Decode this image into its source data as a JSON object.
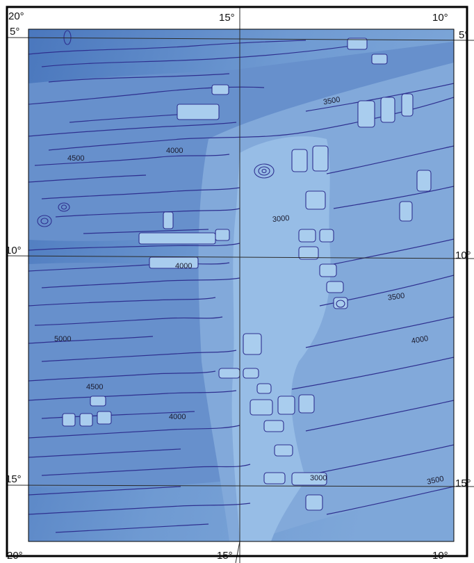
{
  "map": {
    "colors": {
      "frame": "#000000",
      "grid": "#2b2b2b",
      "contour": "#2e2f8f",
      "depth_5000": "#4a77bd",
      "depth_4500": "#5a89c8",
      "depth_4000": "#6f9ad2",
      "depth_3500": "#86addc",
      "depth_3000": "#9ec3e8",
      "depth_shallow": "#b9d8f2"
    },
    "longitude_labels_top": [
      "20°",
      "15°",
      "10°"
    ],
    "longitude_labels_bottom": [
      "20°",
      "15°",
      "10°"
    ],
    "latitude_labels_left": [
      "5°",
      "10°",
      "15°"
    ],
    "latitude_labels_right": [
      "5°",
      "10°",
      "15°"
    ],
    "contour_labels": [
      "3500",
      "4500",
      "4000",
      "3000",
      "4000",
      "3500",
      "5000",
      "4000",
      "4500",
      "4000",
      "3000",
      "3500"
    ]
  }
}
